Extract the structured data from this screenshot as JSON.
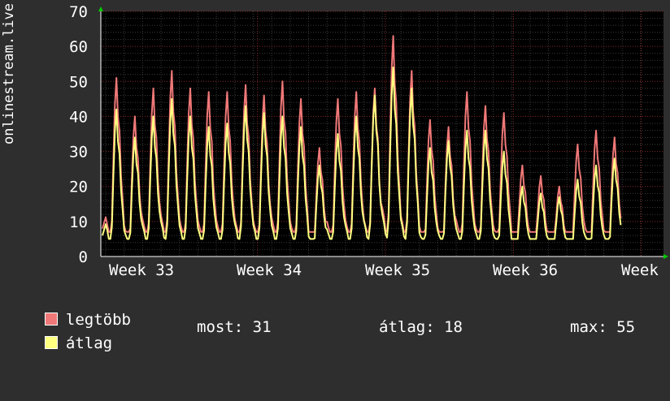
{
  "chart_data": {
    "type": "line",
    "ylabel": "onlinestream.live",
    "ylim": [
      0,
      70
    ],
    "yticks": [
      0,
      10,
      20,
      30,
      40,
      50,
      60,
      70
    ],
    "xtick_labels": [
      "Week 33",
      "Week 34",
      "Week 35",
      "Week 36",
      "Week"
    ],
    "grid": true,
    "series": [
      {
        "name": "legtöbb",
        "color": "#f07878",
        "daily_peaks": [
          51,
          40,
          48,
          53,
          48,
          47,
          47,
          49,
          46,
          50,
          45,
          31,
          45,
          47,
          48,
          63,
          53,
          39,
          37,
          47,
          43,
          41,
          26,
          23,
          20,
          32,
          36,
          34
        ]
      },
      {
        "name": "átlag",
        "color": "#ffff80",
        "daily_peaks": [
          42,
          34,
          40,
          45,
          40,
          37,
          38,
          43,
          41,
          40,
          37,
          26,
          35,
          40,
          46,
          54,
          48,
          31,
          33,
          36,
          36,
          30,
          20,
          18,
          17,
          22,
          26,
          28
        ]
      }
    ]
  },
  "legend": {
    "max_label": "legtöbb",
    "avg_label": "átlag",
    "stats": {
      "now": "most: 31",
      "average": "átlag: 18",
      "max": "max: 55"
    }
  }
}
